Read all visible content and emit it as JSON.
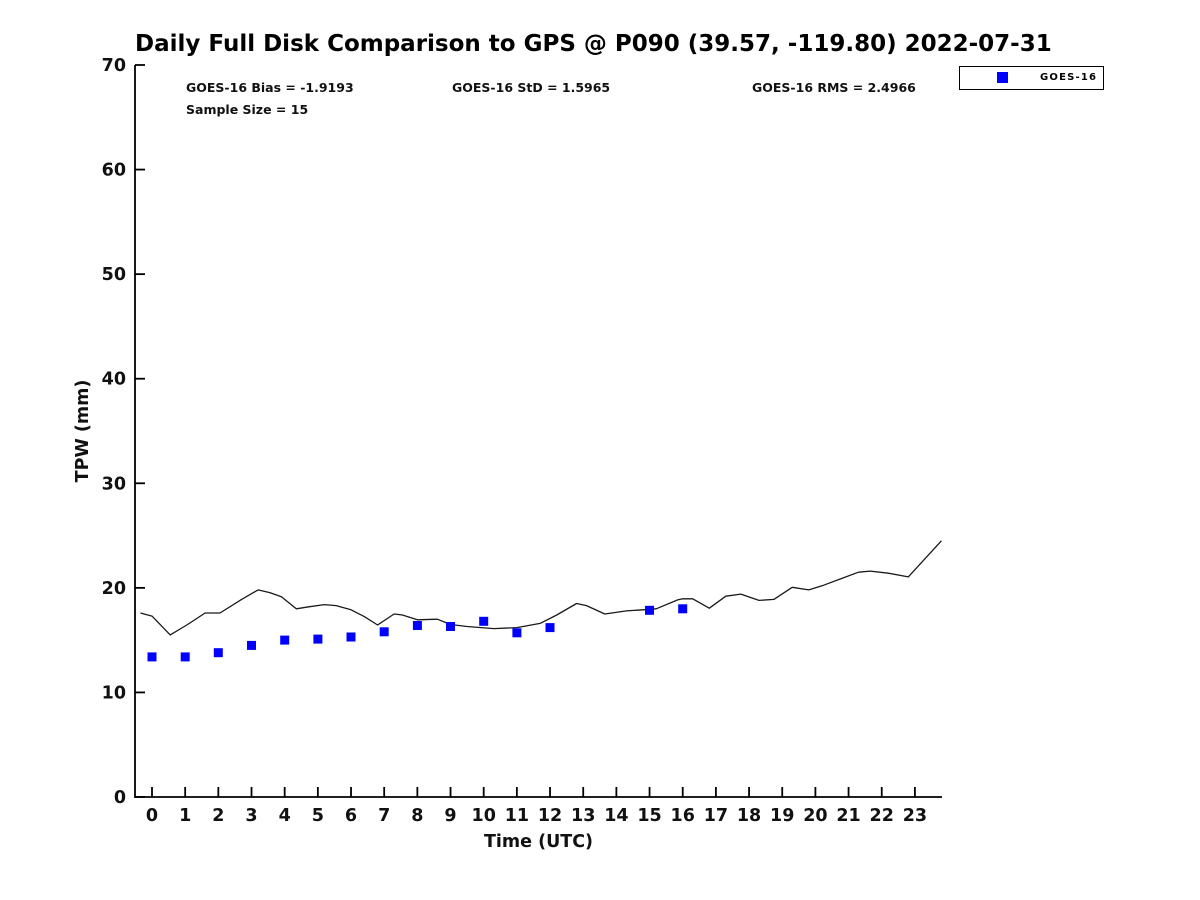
{
  "chart_data": {
    "type": "line+scatter",
    "title": "Daily Full Disk Comparison to GPS @ P090 (39.57, -119.80) 2022-07-31",
    "xlabel": "Time (UTC)",
    "ylabel": "TPW (mm)",
    "xlim": [
      -0.5,
      23.8
    ],
    "ylim": [
      0,
      70
    ],
    "xticks": [
      0,
      1,
      2,
      3,
      4,
      5,
      6,
      7,
      8,
      9,
      10,
      11,
      12,
      13,
      14,
      15,
      16,
      17,
      18,
      19,
      20,
      21,
      22,
      23
    ],
    "yticks": [
      0,
      10,
      20,
      30,
      40,
      50,
      60,
      70
    ],
    "grid": false,
    "legend_position": "top-right",
    "legend": [
      "GOES-16"
    ],
    "annotations": [
      "GOES-16 Bias = -1.9193",
      "GOES-16 StD = 1.5965",
      "GOES-16 RMS = 2.4966",
      "Sample Size = 15"
    ],
    "series": [
      {
        "name": "GPS",
        "type": "line",
        "color": "#1a1a1a",
        "points": [
          [
            -0.35,
            17.6
          ],
          [
            0,
            17.3
          ],
          [
            0.55,
            15.5
          ],
          [
            1.05,
            16.45
          ],
          [
            1.6,
            17.6
          ],
          [
            2.05,
            17.6
          ],
          [
            2.7,
            18.9
          ],
          [
            3.2,
            19.8
          ],
          [
            3.55,
            19.55
          ],
          [
            3.9,
            19.15
          ],
          [
            4.35,
            18.0
          ],
          [
            4.75,
            18.2
          ],
          [
            5.2,
            18.4
          ],
          [
            5.55,
            18.3
          ],
          [
            6.0,
            17.9
          ],
          [
            6.4,
            17.25
          ],
          [
            6.8,
            16.45
          ],
          [
            7.3,
            17.5
          ],
          [
            7.55,
            17.4
          ],
          [
            8.0,
            16.95
          ],
          [
            8.6,
            17.0
          ],
          [
            9.0,
            16.5
          ],
          [
            9.5,
            16.3
          ],
          [
            10.3,
            16.1
          ],
          [
            11.0,
            16.2
          ],
          [
            11.7,
            16.6
          ],
          [
            12.2,
            17.4
          ],
          [
            12.8,
            18.5
          ],
          [
            13.1,
            18.3
          ],
          [
            13.65,
            17.5
          ],
          [
            14.3,
            17.8
          ],
          [
            14.8,
            17.9
          ],
          [
            15.2,
            18.0
          ],
          [
            15.85,
            18.85
          ],
          [
            16.0,
            18.95
          ],
          [
            16.3,
            18.95
          ],
          [
            16.8,
            18.05
          ],
          [
            17.3,
            19.2
          ],
          [
            17.75,
            19.4
          ],
          [
            18.3,
            18.8
          ],
          [
            18.75,
            18.9
          ],
          [
            19.3,
            20.05
          ],
          [
            19.8,
            19.8
          ],
          [
            20.2,
            20.2
          ],
          [
            20.8,
            20.9
          ],
          [
            21.3,
            21.5
          ],
          [
            21.65,
            21.6
          ],
          [
            22.2,
            21.4
          ],
          [
            22.8,
            21.05
          ],
          [
            23.8,
            24.5
          ]
        ]
      },
      {
        "name": "GOES-16",
        "type": "scatter",
        "marker": "square",
        "color": "#0000ff",
        "points": [
          [
            0,
            13.4
          ],
          [
            1,
            13.4
          ],
          [
            2,
            13.8
          ],
          [
            3,
            14.5
          ],
          [
            4,
            15.0
          ],
          [
            5,
            15.1
          ],
          [
            6,
            15.3
          ],
          [
            7,
            15.8
          ],
          [
            8,
            16.4
          ],
          [
            9,
            16.3
          ],
          [
            10,
            16.8
          ],
          [
            11,
            15.7
          ],
          [
            12,
            16.2
          ],
          [
            15,
            17.85
          ],
          [
            16,
            18.0
          ]
        ]
      }
    ]
  }
}
